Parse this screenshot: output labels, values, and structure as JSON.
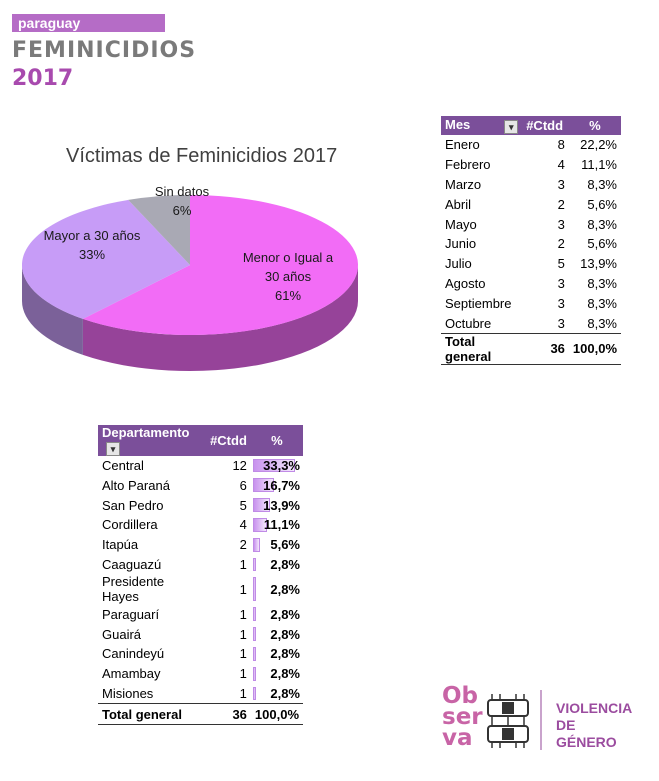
{
  "header": {
    "country": "paraguay",
    "title": "FEMINICIDIOS",
    "year": "2017"
  },
  "chart_data": {
    "type": "pie",
    "title": "Víctimas de Feminicidios 2017",
    "slices": [
      {
        "label": "Menor o Igual a 30 años",
        "label_lines": [
          "Menor o Igual a",
          "30 años"
        ],
        "value": 61,
        "pct_label": "61%",
        "color": "#f26cf6"
      },
      {
        "label": "Mayor a 30 años",
        "label_lines": [
          "Mayor a 30 años"
        ],
        "value": 33,
        "pct_label": "33%",
        "color": "#c79cf7"
      },
      {
        "label": "Sin datos",
        "label_lines": [
          "Sin datos"
        ],
        "value": 6,
        "pct_label": "6%",
        "color": "#a9a9b4"
      }
    ]
  },
  "month_table": {
    "headers": [
      "Mes",
      "#Ctdd",
      "%"
    ],
    "rows": [
      {
        "name": "Enero",
        "count": "8",
        "pct": "22,2%"
      },
      {
        "name": "Febrero",
        "count": "4",
        "pct": "11,1%"
      },
      {
        "name": "Marzo",
        "count": "3",
        "pct": "8,3%"
      },
      {
        "name": "Abril",
        "count": "2",
        "pct": "5,6%"
      },
      {
        "name": "Mayo",
        "count": "3",
        "pct": "8,3%"
      },
      {
        "name": "Junio",
        "count": "2",
        "pct": "5,6%"
      },
      {
        "name": "Julio",
        "count": "5",
        "pct": "13,9%"
      },
      {
        "name": "Agosto",
        "count": "3",
        "pct": "8,3%"
      },
      {
        "name": "Septiembre",
        "count": "3",
        "pct": "8,3%"
      },
      {
        "name": "Octubre",
        "count": "3",
        "pct": "8,3%"
      }
    ],
    "total": {
      "name": "Total general",
      "count": "36",
      "pct": "100,0%"
    }
  },
  "dept_table": {
    "headers": [
      "Departamento",
      "#Ctdd",
      "%"
    ],
    "rows": [
      {
        "name": "Central",
        "count": "12",
        "pct": "33,3%",
        "value": 33.3
      },
      {
        "name": "Alto Paraná",
        "count": "6",
        "pct": "16,7%",
        "value": 16.7
      },
      {
        "name": "San Pedro",
        "count": "5",
        "pct": "13,9%",
        "value": 13.9
      },
      {
        "name": "Cordillera",
        "count": "4",
        "pct": "11,1%",
        "value": 11.1
      },
      {
        "name": "Itapúa",
        "count": "2",
        "pct": "5,6%",
        "value": 5.6
      },
      {
        "name": "Caaguazú",
        "count": "1",
        "pct": "2,8%",
        "value": 2.8
      },
      {
        "name": "Presidente Hayes",
        "count": "1",
        "pct": "2,8%",
        "value": 2.8
      },
      {
        "name": "Paraguarí",
        "count": "1",
        "pct": "2,8%",
        "value": 2.8
      },
      {
        "name": "Guairá",
        "count": "1",
        "pct": "2,8%",
        "value": 2.8
      },
      {
        "name": "Canindeyú",
        "count": "1",
        "pct": "2,8%",
        "value": 2.8
      },
      {
        "name": "Amambay",
        "count": "1",
        "pct": "2,8%",
        "value": 2.8
      },
      {
        "name": "Misiones",
        "count": "1",
        "pct": "2,8%",
        "value": 2.8
      }
    ],
    "total": {
      "name": "Total general",
      "count": "36",
      "pct": "100,0%"
    }
  },
  "logo": {
    "obs_lines": [
      "Ob",
      "ser",
      "va"
    ],
    "tag_lines": [
      "VIOLENCIA",
      "DE",
      "GÉNERO"
    ]
  },
  "icons": {
    "filter": "filter-icon",
    "logo": "observa-logo"
  }
}
